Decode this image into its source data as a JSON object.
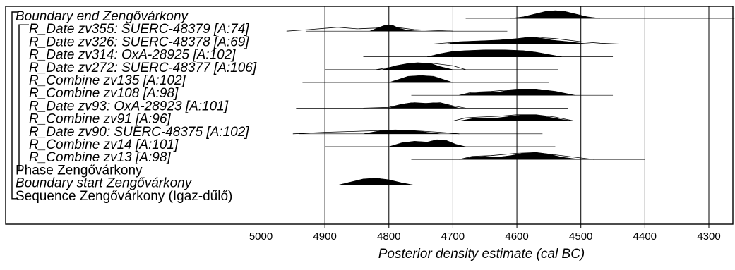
{
  "chart_data": {
    "type": "density",
    "xlabel": "Posterior density estimate (cal BC)",
    "x_axis": {
      "min": 5000,
      "max": 4300,
      "ticks": [
        5000,
        4900,
        4800,
        4700,
        4600,
        4500,
        4400,
        4300
      ],
      "reversed": true,
      "grid": true
    },
    "rows": [
      {
        "label": "Boundary end Zengővárkony",
        "italic": true,
        "indent": 0,
        "bracket": "top-outer",
        "range": [
          4680,
          4260
        ],
        "posterior": [
          [
            4610,
            0
          ],
          [
            4590,
            2
          ],
          [
            4570,
            6
          ],
          [
            4555,
            9
          ],
          [
            4540,
            10
          ],
          [
            4525,
            9
          ],
          [
            4510,
            6
          ],
          [
            4490,
            2
          ],
          [
            4470,
            0
          ]
        ]
      },
      {
        "label": "R_Date zv355: SUERC-48379 [A:74]",
        "italic": true,
        "indent": 1,
        "bracket": "top-inner",
        "range": [
          4930,
          4615
        ],
        "prior": [
          [
            4960,
            0
          ],
          [
            4925,
            2
          ],
          [
            4880,
            5
          ],
          [
            4850,
            3
          ],
          [
            4820,
            4
          ],
          [
            4800,
            6
          ],
          [
            4780,
            4
          ],
          [
            4760,
            2
          ],
          [
            4730,
            1
          ],
          [
            4700,
            0
          ]
        ],
        "posterior": [
          [
            4830,
            0
          ],
          [
            4815,
            5
          ],
          [
            4805,
            8
          ],
          [
            4795,
            8
          ],
          [
            4785,
            4
          ],
          [
            4770,
            1
          ],
          [
            4750,
            0
          ]
        ]
      },
      {
        "label": "R_Date zv326: SUERC-48378 [A:69]",
        "italic": true,
        "indent": 1,
        "range": [
          4785,
          4345
        ],
        "prior": [
          [
            4730,
            0
          ],
          [
            4700,
            2
          ],
          [
            4660,
            3
          ],
          [
            4620,
            5
          ],
          [
            4590,
            6
          ],
          [
            4560,
            8
          ],
          [
            4540,
            7
          ],
          [
            4500,
            3
          ],
          [
            4470,
            1
          ],
          [
            4440,
            0
          ]
        ],
        "posterior": [
          [
            4710,
            0
          ],
          [
            4690,
            3
          ],
          [
            4660,
            4
          ],
          [
            4630,
            5
          ],
          [
            4600,
            7
          ],
          [
            4580,
            9
          ],
          [
            4565,
            8
          ],
          [
            4545,
            5
          ],
          [
            4520,
            3
          ],
          [
            4500,
            1
          ],
          [
            4480,
            0
          ]
        ]
      },
      {
        "label": "R_Date zv314: OxA-28925 [A:102]",
        "italic": true,
        "indent": 1,
        "range": [
          4840,
          4450
        ],
        "prior": [
          [
            4740,
            0
          ],
          [
            4710,
            3
          ],
          [
            4680,
            6
          ],
          [
            4640,
            8
          ],
          [
            4600,
            7
          ],
          [
            4560,
            3
          ],
          [
            4530,
            0
          ]
        ],
        "posterior": [
          [
            4740,
            0
          ],
          [
            4720,
            4
          ],
          [
            4700,
            7
          ],
          [
            4680,
            8
          ],
          [
            4650,
            9
          ],
          [
            4620,
            9
          ],
          [
            4590,
            8
          ],
          [
            4570,
            6
          ],
          [
            4550,
            3
          ],
          [
            4530,
            0
          ]
        ]
      },
      {
        "label": "R_Date zv272: SUERC-48377 [A:106]",
        "italic": true,
        "indent": 1,
        "range": [
          4900,
          4535
        ],
        "prior": [
          [
            4820,
            0
          ],
          [
            4790,
            4
          ],
          [
            4760,
            8
          ],
          [
            4730,
            8
          ],
          [
            4700,
            5
          ],
          [
            4680,
            0
          ]
        ],
        "posterior": [
          [
            4810,
            0
          ],
          [
            4790,
            5
          ],
          [
            4770,
            8
          ],
          [
            4755,
            9
          ],
          [
            4735,
            8
          ],
          [
            4720,
            4
          ],
          [
            4700,
            0
          ]
        ]
      },
      {
        "label": "R_Combine zv135 [A:102]",
        "italic": true,
        "indent": 1,
        "range": [
          4935,
          4550
        ],
        "posterior": [
          [
            4800,
            0
          ],
          [
            4785,
            4
          ],
          [
            4770,
            8
          ],
          [
            4750,
            9
          ],
          [
            4730,
            8
          ],
          [
            4715,
            4
          ],
          [
            4700,
            0
          ]
        ]
      },
      {
        "label": "R_Combine zv108 [A:98]",
        "italic": true,
        "indent": 1,
        "range": [
          4765,
          4450
        ],
        "prior": [
          [
            4690,
            0
          ],
          [
            4670,
            4
          ],
          [
            4640,
            5
          ],
          [
            4600,
            8
          ],
          [
            4570,
            8
          ],
          [
            4540,
            5
          ],
          [
            4510,
            0
          ]
        ],
        "posterior": [
          [
            4690,
            0
          ],
          [
            4670,
            3
          ],
          [
            4650,
            4
          ],
          [
            4630,
            4
          ],
          [
            4610,
            7
          ],
          [
            4590,
            8
          ],
          [
            4570,
            8
          ],
          [
            4550,
            6
          ],
          [
            4530,
            3
          ],
          [
            4510,
            0
          ]
        ]
      },
      {
        "label": "R_Date zv93: OxA-28923 [A:101]",
        "italic": true,
        "indent": 1,
        "range": [
          4945,
          4520
        ],
        "prior": [
          [
            4840,
            0
          ],
          [
            4800,
            1
          ],
          [
            4780,
            5
          ],
          [
            4760,
            7
          ],
          [
            4740,
            6
          ],
          [
            4720,
            7
          ],
          [
            4700,
            3
          ],
          [
            4680,
            0
          ]
        ],
        "posterior": [
          [
            4800,
            0
          ],
          [
            4780,
            5
          ],
          [
            4765,
            7
          ],
          [
            4745,
            6
          ],
          [
            4730,
            7
          ],
          [
            4715,
            6
          ],
          [
            4700,
            2
          ],
          [
            4690,
            0
          ]
        ]
      },
      {
        "label": "R_Combine zv91 [A:96]",
        "italic": true,
        "indent": 1,
        "range": [
          4715,
          4455
        ],
        "prior": [
          [
            4700,
            0
          ],
          [
            4680,
            4
          ],
          [
            4660,
            5
          ],
          [
            4630,
            6
          ],
          [
            4600,
            8
          ],
          [
            4570,
            8
          ],
          [
            4540,
            5
          ],
          [
            4510,
            0
          ]
        ],
        "posterior": [
          [
            4690,
            0
          ],
          [
            4670,
            3
          ],
          [
            4650,
            4
          ],
          [
            4630,
            4
          ],
          [
            4610,
            6
          ],
          [
            4590,
            8
          ],
          [
            4570,
            8
          ],
          [
            4550,
            5
          ],
          [
            4530,
            2
          ],
          [
            4510,
            0
          ]
        ]
      },
      {
        "label": "R_Date zv90: SUERC-48375 [A:102]",
        "italic": true,
        "indent": 1,
        "range": [
          4940,
          4560
        ],
        "prior": [
          [
            4950,
            0
          ],
          [
            4900,
            2
          ],
          [
            4860,
            3
          ],
          [
            4820,
            4
          ],
          [
            4790,
            5
          ],
          [
            4760,
            4
          ],
          [
            4720,
            2
          ],
          [
            4690,
            0
          ]
        ],
        "posterior": [
          [
            4840,
            0
          ],
          [
            4820,
            3
          ],
          [
            4800,
            5
          ],
          [
            4780,
            5
          ],
          [
            4760,
            4
          ],
          [
            4740,
            2
          ],
          [
            4720,
            0
          ]
        ]
      },
      {
        "label": "R_Combine zv14 [A:101]",
        "italic": true,
        "indent": 1,
        "range": [
          4900,
          4540
        ],
        "posterior": [
          [
            4800,
            0
          ],
          [
            4780,
            5
          ],
          [
            4760,
            7
          ],
          [
            4740,
            6
          ],
          [
            4725,
            9
          ],
          [
            4710,
            8
          ],
          [
            4695,
            3
          ],
          [
            4680,
            0
          ]
        ]
      },
      {
        "label": "R_Combine zv13 [A:98]",
        "italic": true,
        "indent": 1,
        "bracket": "bottom-inner",
        "range": [
          4765,
          4400
        ],
        "prior": [
          [
            4690,
            0
          ],
          [
            4670,
            4
          ],
          [
            4640,
            5
          ],
          [
            4600,
            8
          ],
          [
            4570,
            9
          ],
          [
            4540,
            6
          ],
          [
            4500,
            2
          ],
          [
            4480,
            0
          ]
        ],
        "posterior": [
          [
            4690,
            0
          ],
          [
            4670,
            3
          ],
          [
            4650,
            4
          ],
          [
            4630,
            3
          ],
          [
            4610,
            5
          ],
          [
            4590,
            8
          ],
          [
            4570,
            9
          ],
          [
            4550,
            7
          ],
          [
            4530,
            3
          ],
          [
            4500,
            0
          ]
        ]
      },
      {
        "label": "Phase Zengővárkony",
        "italic": false,
        "indent": 0
      },
      {
        "label": "Boundary start Zengővárkony",
        "italic": true,
        "indent": 0,
        "range": [
          4995,
          4720
        ],
        "posterior": [
          [
            4880,
            0
          ],
          [
            4860,
            4
          ],
          [
            4840,
            8
          ],
          [
            4820,
            9
          ],
          [
            4800,
            7
          ],
          [
            4780,
            3
          ],
          [
            4760,
            0
          ]
        ]
      },
      {
        "label": "Sequence Zengővárkony (Igaz-dűlő)",
        "italic": false,
        "indent": 0,
        "bracket": "bottom-outer"
      }
    ]
  }
}
